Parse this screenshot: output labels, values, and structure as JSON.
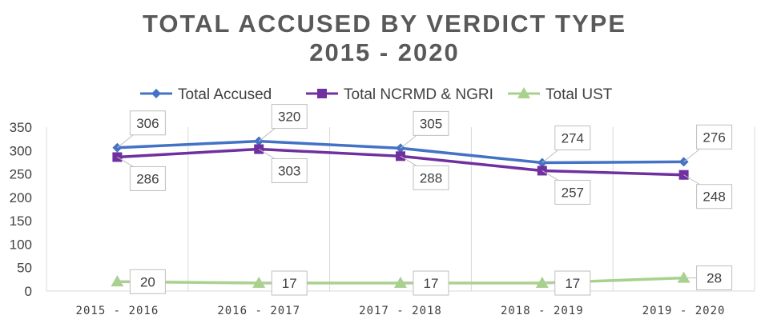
{
  "chart_data": {
    "type": "line",
    "title": [
      "TOTAL ACCUSED BY VERDICT TYPE",
      "2015 - 2020"
    ],
    "categories": [
      "2015 - 2016",
      "2016 - 2017",
      "2017 - 2018",
      "2018 - 2019",
      "2019 - 2020"
    ],
    "ylim": [
      0,
      350
    ],
    "yticks": [
      0,
      50,
      100,
      150,
      200,
      250,
      300,
      350
    ],
    "grid": "vertical",
    "legend_position": "top",
    "series": [
      {
        "name": "Total Accused",
        "values": [
          306,
          320,
          305,
          274,
          276
        ],
        "color": "#4472C4",
        "marker": "diamond",
        "label_pos": "above"
      },
      {
        "name": "Total NCRMD & NGRI",
        "values": [
          286,
          303,
          288,
          257,
          248
        ],
        "color": "#7030A0",
        "marker": "square",
        "label_pos": "below"
      },
      {
        "name": "Total UST",
        "values": [
          20,
          17,
          17,
          17,
          28
        ],
        "color": "#A9D18E",
        "marker": "triangle",
        "label_pos": "right"
      }
    ]
  }
}
